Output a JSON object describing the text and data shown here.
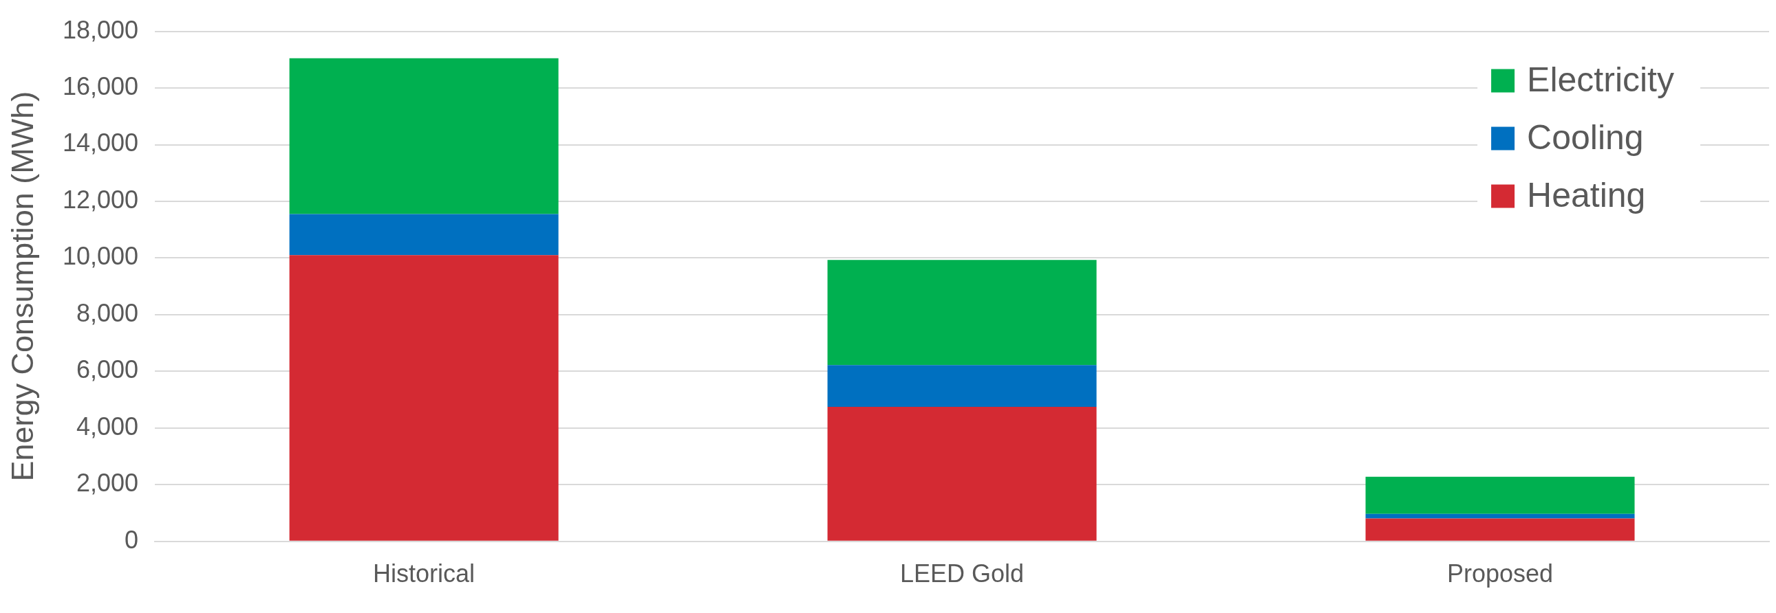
{
  "chart_data": {
    "type": "bar",
    "stacked": true,
    "ylabel": "Energy Consumption (MWh)",
    "categories": [
      "Historical",
      "LEED Gold",
      "Proposed"
    ],
    "series": [
      {
        "name": "Heating",
        "color": "#d42a33",
        "values": [
          10100,
          4750,
          810
        ]
      },
      {
        "name": "Cooling",
        "color": "#0070c0",
        "values": [
          1450,
          1470,
          160
        ]
      },
      {
        "name": "Electricity",
        "color": "#00b050",
        "values": [
          5500,
          3710,
          1310
        ]
      }
    ],
    "ylim": [
      0,
      18000
    ],
    "yticks": [
      0,
      {
        "value": 2000,
        "label": "2,000"
      },
      {
        "value": 4000,
        "label": "4,000"
      },
      {
        "value": 6000,
        "label": "6,000"
      },
      {
        "value": 8000,
        "label": "8,000"
      },
      {
        "value": 10000,
        "label": "10,000"
      },
      {
        "value": 12000,
        "label": "12,000"
      },
      {
        "value": 14000,
        "label": "14,000"
      },
      {
        "value": 16000,
        "label": "16,000"
      },
      {
        "value": 18000,
        "label": "18,000"
      }
    ],
    "grid": "y",
    "legend": "top right"
  }
}
